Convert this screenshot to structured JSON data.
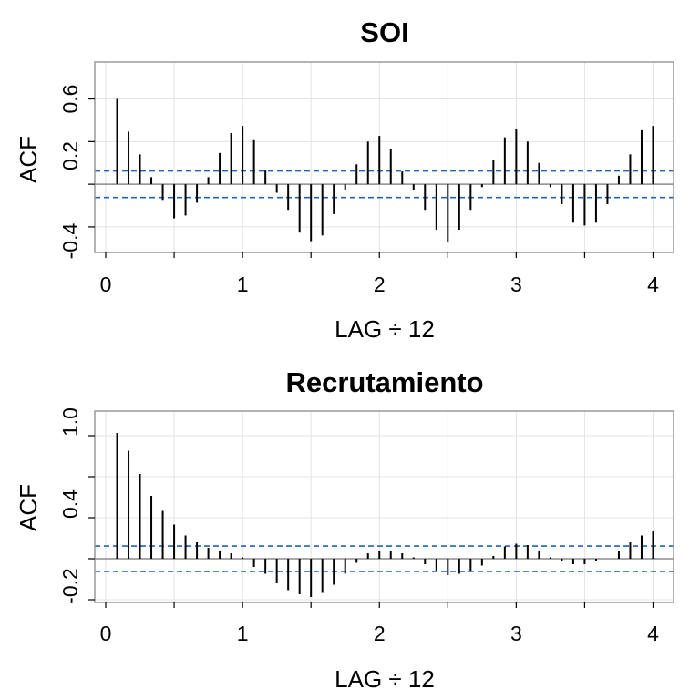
{
  "chart_data": [
    {
      "type": "bar",
      "title": "SOI",
      "xlabel": "LAG ÷ 12",
      "ylabel": "ACF",
      "xlim": [
        -0.08,
        4.15
      ],
      "ylim": [
        -0.48,
        0.86
      ],
      "xticks": [
        "0",
        "1",
        "2",
        "3",
        "4"
      ],
      "yticks": [
        "-0.4",
        "0.2",
        "0.6"
      ],
      "ytick_values": [
        -0.4,
        0.2,
        0.6
      ],
      "conf_bound": 0.093,
      "grid": true,
      "x": [
        0.0833,
        0.1667,
        0.25,
        0.3333,
        0.4167,
        0.5,
        0.5833,
        0.6667,
        0.75,
        0.8333,
        0.9167,
        1.0,
        1.0833,
        1.1667,
        1.25,
        1.3333,
        1.4167,
        1.5,
        1.5833,
        1.6667,
        1.75,
        1.8333,
        1.9167,
        2.0,
        2.0833,
        2.1667,
        2.25,
        2.3333,
        2.4167,
        2.5,
        2.5833,
        2.6667,
        2.75,
        2.8333,
        2.9167,
        3.0,
        3.0833,
        3.1667,
        3.25,
        3.3333,
        3.4167,
        3.5,
        3.5833,
        3.6667,
        3.75,
        3.8333,
        3.9167,
        4.0
      ],
      "values": [
        0.6,
        0.37,
        0.21,
        0.05,
        -0.11,
        -0.24,
        -0.22,
        -0.13,
        0.05,
        0.22,
        0.36,
        0.41,
        0.31,
        0.1,
        -0.06,
        -0.18,
        -0.34,
        -0.4,
        -0.36,
        -0.21,
        -0.04,
        0.14,
        0.3,
        0.34,
        0.25,
        0.09,
        -0.04,
        -0.18,
        -0.32,
        -0.41,
        -0.32,
        -0.18,
        -0.02,
        0.17,
        0.33,
        0.39,
        0.3,
        0.15,
        -0.02,
        -0.14,
        -0.27,
        -0.29,
        -0.27,
        -0.14,
        0.06,
        0.21,
        0.38,
        0.41
      ]
    },
    {
      "type": "bar",
      "title": "Recrutamiento",
      "xlabel": "LAG ÷ 12",
      "ylabel": "ACF",
      "xlim": [
        -0.08,
        4.15
      ],
      "ylim": [
        -0.32,
        1.08
      ],
      "xticks": [
        "0",
        "1",
        "2",
        "3",
        "4"
      ],
      "yticks": [
        "-0.2",
        "0.4",
        "1.0"
      ],
      "ytick_values": [
        -0.2,
        0.4,
        1.0
      ],
      "conf_bound": 0.093,
      "grid": true,
      "x": [
        0.0833,
        0.1667,
        0.25,
        0.3333,
        0.4167,
        0.5,
        0.5833,
        0.6667,
        0.75,
        0.8333,
        0.9167,
        1.0,
        1.0833,
        1.1667,
        1.25,
        1.3333,
        1.4167,
        1.5,
        1.5833,
        1.6667,
        1.75,
        1.8333,
        1.9167,
        2.0,
        2.0833,
        2.1667,
        2.25,
        2.3333,
        2.4167,
        2.5,
        2.5833,
        2.6667,
        2.75,
        2.8333,
        2.9167,
        3.0,
        3.0833,
        3.1667,
        3.25,
        3.3333,
        3.4167,
        3.5,
        3.5833,
        3.6667,
        3.75,
        3.8333,
        3.9167,
        4.0
      ],
      "values": [
        0.92,
        0.79,
        0.62,
        0.46,
        0.35,
        0.25,
        0.17,
        0.12,
        0.08,
        0.06,
        0.04,
        0.01,
        -0.06,
        -0.11,
        -0.18,
        -0.23,
        -0.26,
        -0.28,
        -0.25,
        -0.19,
        -0.11,
        -0.03,
        0.04,
        0.06,
        0.06,
        0.04,
        0.01,
        -0.04,
        -0.09,
        -0.12,
        -0.11,
        -0.09,
        -0.05,
        0.02,
        0.09,
        0.11,
        0.1,
        0.06,
        0.01,
        -0.02,
        -0.04,
        -0.04,
        -0.02,
        0.0,
        0.06,
        0.12,
        0.17,
        0.2
      ]
    }
  ]
}
